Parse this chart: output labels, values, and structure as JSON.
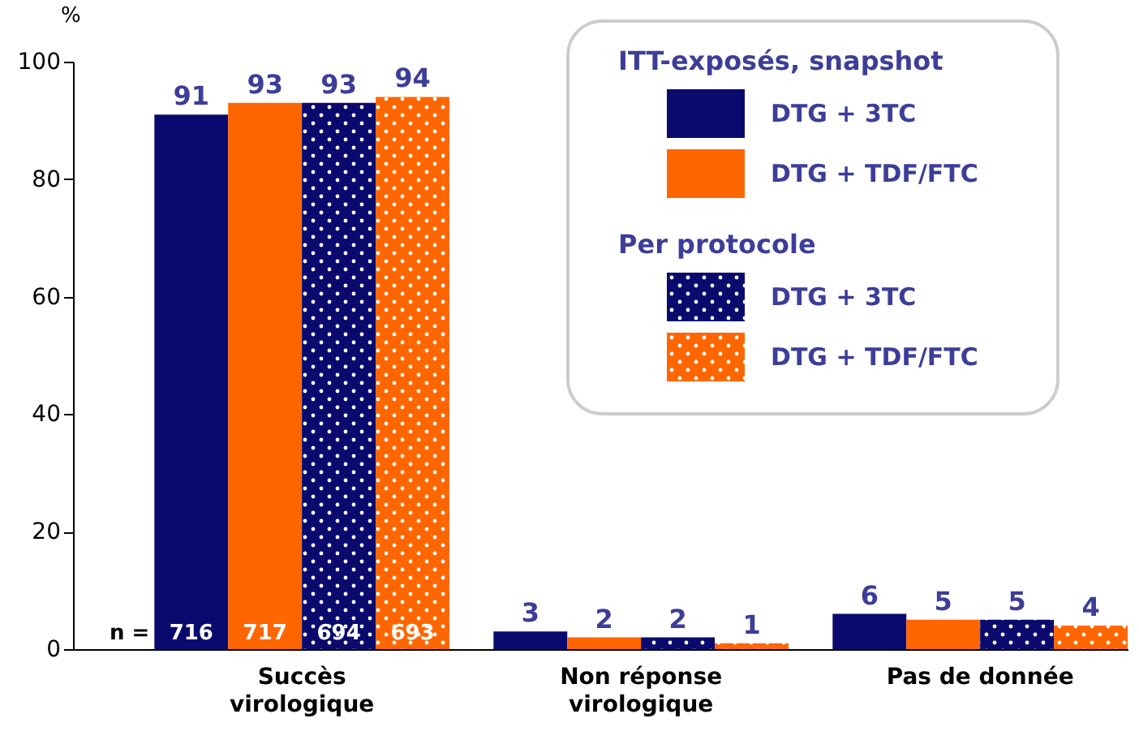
{
  "chart_data": {
    "type": "bar",
    "ylabel": "%",
    "legend_title": "ITT-exposés, snapshot",
    "categories": [
      "Succès\nvirologique",
      "Non réponse\nvirologique",
      "Pas de donnée"
    ],
    "series": [
      {
        "name": "DTG + 3TC",
        "color": "#0a0a6e",
        "values": [
          91,
          3,
          6
        ]
      },
      {
        "name": "DTG + TDF/FTC",
        "color": "#ff6600",
        "values": [
          93,
          2,
          5
        ]
      },
      {
        "name": "DTG + 3TC",
        "color": "#0a0a6e",
        "values": [
          93,
          2,
          5
        ]
      },
      {
        "name": "DTG + TDF/FTC",
        "color": "#ff6600",
        "values": [
          94,
          1,
          4
        ]
      }
    ],
    "annotations": [
      "n =",
      "716",
      "717",
      "694",
      "693",
      "Per protocole"
    ],
    "ylim": [
      0,
      100
    ],
    "yticks": [
      0,
      20,
      40,
      60,
      80,
      100
    ],
    "grid": false,
    "data_labels": true,
    "legend": "top right"
  }
}
